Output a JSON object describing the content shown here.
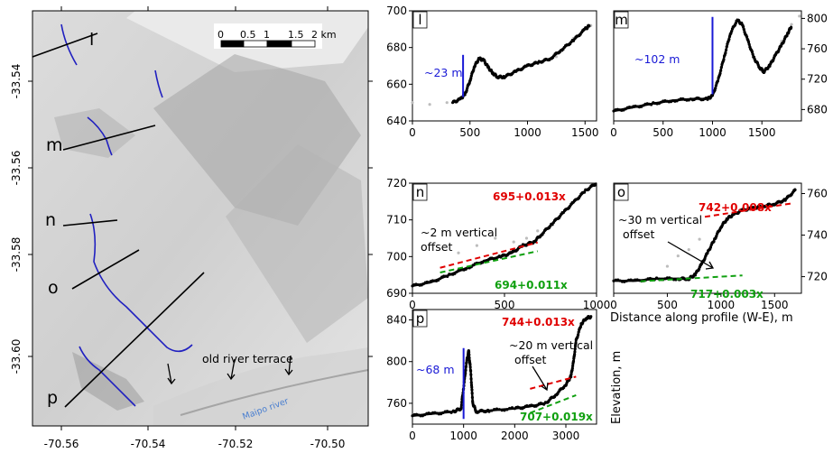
{
  "map": {
    "x_ticks": [
      "-70.56",
      "-70.54",
      "-70.52",
      "-70.50"
    ],
    "y_ticks": [
      "-33.54",
      "-33.56",
      "-33.58",
      "-33.60"
    ],
    "scalebar": {
      "labels": [
        "0",
        "0.5",
        "1",
        "1.5",
        "2 km"
      ]
    },
    "profile_labels": [
      "l",
      "m",
      "n",
      "o",
      "p"
    ],
    "annotations": {
      "terrace": "old river terrace",
      "river": "Maipo river"
    },
    "colors": {
      "fault": "#2020c0",
      "river_label": "#4a7fd0",
      "profile": "#000000"
    }
  },
  "shared_labels": {
    "xlabel": "Distance along profile (W-E), m",
    "ylabel": "Elevation, m"
  },
  "chart_data": [
    {
      "panel": "l",
      "type": "scatter",
      "xlim": [
        0,
        1600
      ],
      "ylim": [
        640,
        700
      ],
      "xticks": [
        "0",
        "500",
        "1000",
        "1500"
      ],
      "yticks": [
        "640",
        "660",
        "680",
        "700"
      ],
      "offset_label": "~23 m",
      "offset_x": 440,
      "offset_y": [
        653,
        676
      ],
      "profile": [
        [
          350,
          650
        ],
        [
          420,
          652
        ],
        [
          460,
          655
        ],
        [
          500,
          662
        ],
        [
          540,
          670
        ],
        [
          580,
          674
        ],
        [
          620,
          673
        ],
        [
          660,
          669
        ],
        [
          700,
          666
        ],
        [
          740,
          664
        ],
        [
          800,
          664
        ],
        [
          900,
          667
        ],
        [
          1000,
          670
        ],
        [
          1100,
          672
        ],
        [
          1200,
          674
        ],
        [
          1300,
          679
        ],
        [
          1400,
          684
        ],
        [
          1500,
          690
        ],
        [
          1540,
          692
        ]
      ],
      "gray": [
        [
          0,
          650
        ],
        [
          150,
          649
        ],
        [
          300,
          650
        ],
        [
          1250,
          675
        ],
        [
          1400,
          685
        ],
        [
          1550,
          692
        ]
      ]
    },
    {
      "panel": "m",
      "type": "scatter",
      "xlim": [
        0,
        1900
      ],
      "ylim": [
        665,
        810
      ],
      "xticks": [
        "0",
        "500",
        "1000",
        "1500"
      ],
      "yticks": [
        "680",
        "720",
        "760",
        "800"
      ],
      "offset_label": "~102 m",
      "offset_x": 1000,
      "offset_y": [
        700,
        802
      ],
      "profile": [
        [
          0,
          678
        ],
        [
          200,
          683
        ],
        [
          400,
          688
        ],
        [
          600,
          692
        ],
        [
          800,
          694
        ],
        [
          950,
          694
        ],
        [
          1000,
          698
        ],
        [
          1060,
          720
        ],
        [
          1120,
          750
        ],
        [
          1180,
          780
        ],
        [
          1250,
          798
        ],
        [
          1300,
          792
        ],
        [
          1360,
          770
        ],
        [
          1420,
          748
        ],
        [
          1480,
          735
        ],
        [
          1520,
          730
        ],
        [
          1580,
          738
        ],
        [
          1640,
          752
        ],
        [
          1700,
          765
        ],
        [
          1760,
          780
        ],
        [
          1800,
          790
        ]
      ],
      "gray": [
        [
          1600,
          745
        ],
        [
          1700,
          770
        ],
        [
          1800,
          792
        ],
        [
          1880,
          803
        ]
      ]
    },
    {
      "panel": "n",
      "type": "scatter",
      "xlim": [
        0,
        1000
      ],
      "ylim": [
        690,
        720
      ],
      "xticks": [
        "0",
        "500",
        "1000"
      ],
      "yticks": [
        "690",
        "700",
        "710",
        "720"
      ],
      "annotation": "~2 m vertical offset",
      "fits": [
        {
          "label": "695+0.013x",
          "color": "#e00000",
          "x_range": [
            150,
            680
          ]
        },
        {
          "label": "694+0.011x",
          "color": "#10a010",
          "x_range": [
            150,
            680
          ]
        }
      ],
      "profile": [
        [
          0,
          692
        ],
        [
          100,
          693
        ],
        [
          200,
          695
        ],
        [
          300,
          697
        ],
        [
          400,
          699
        ],
        [
          480,
          700
        ],
        [
          540,
          701
        ],
        [
          600,
          703
        ],
        [
          660,
          704
        ],
        [
          700,
          706
        ],
        [
          760,
          709
        ],
        [
          820,
          712
        ],
        [
          880,
          715
        ],
        [
          940,
          718
        ],
        [
          1000,
          720
        ]
      ],
      "gray": [
        [
          250,
          701
        ],
        [
          350,
          703
        ],
        [
          450,
          705
        ],
        [
          550,
          704
        ],
        [
          620,
          705
        ],
        [
          680,
          707
        ]
      ]
    },
    {
      "panel": "o",
      "type": "scatter",
      "xlim": [
        0,
        1750
      ],
      "ylim": [
        712,
        765
      ],
      "xticks": [
        "0",
        "500",
        "1000",
        "1500"
      ],
      "yticks": [
        "720",
        "740",
        "760"
      ],
      "annotation": "~30 m vertical offset",
      "fits": [
        {
          "label": "742+0.008x",
          "color": "#e00000",
          "x_range": [
            850,
            1650
          ]
        },
        {
          "label": "717+0.003x",
          "color": "#10a010",
          "x_range": [
            250,
            1200
          ]
        }
      ],
      "profile": [
        [
          0,
          718
        ],
        [
          200,
          718
        ],
        [
          400,
          719
        ],
        [
          600,
          719
        ],
        [
          700,
          719
        ],
        [
          760,
          721
        ],
        [
          820,
          726
        ],
        [
          880,
          732
        ],
        [
          940,
          738
        ],
        [
          1000,
          744
        ],
        [
          1060,
          748
        ],
        [
          1120,
          750
        ],
        [
          1200,
          752
        ],
        [
          1300,
          753
        ],
        [
          1400,
          754
        ],
        [
          1500,
          755
        ],
        [
          1600,
          757
        ],
        [
          1700,
          762
        ]
      ],
      "gray": [
        [
          500,
          725
        ],
        [
          600,
          730
        ],
        [
          700,
          733
        ],
        [
          800,
          738
        ]
      ]
    },
    {
      "panel": "p",
      "type": "scatter",
      "xlim": [
        0,
        3600
      ],
      "ylim": [
        740,
        850
      ],
      "xticks": [
        "0",
        "1000",
        "2000",
        "3000"
      ],
      "yticks": [
        "760",
        "800",
        "840"
      ],
      "offset_label": "~68 m",
      "offset_x": 1000,
      "offset_y": [
        745,
        813
      ],
      "annotation": "~20 m vertical offset",
      "fits": [
        {
          "label": "744+0.013x",
          "color": "#e00000",
          "x_range": [
            2300,
            3200
          ]
        },
        {
          "label": "707+0.019x",
          "color": "#10a010",
          "x_range": [
            2300,
            3200
          ]
        }
      ],
      "profile": [
        [
          0,
          748
        ],
        [
          400,
          750
        ],
        [
          800,
          752
        ],
        [
          950,
          755
        ],
        [
          1000,
          775
        ],
        [
          1060,
          800
        ],
        [
          1100,
          810
        ],
        [
          1140,
          790
        ],
        [
          1180,
          760
        ],
        [
          1250,
          752
        ],
        [
          1500,
          753
        ],
        [
          2000,
          755
        ],
        [
          2300,
          757
        ],
        [
          2600,
          760
        ],
        [
          2800,
          768
        ],
        [
          3000,
          778
        ],
        [
          3100,
          786
        ],
        [
          3150,
          800
        ],
        [
          3200,
          820
        ],
        [
          3300,
          836
        ],
        [
          3400,
          842
        ],
        [
          3500,
          843
        ]
      ],
      "gray": []
    }
  ]
}
